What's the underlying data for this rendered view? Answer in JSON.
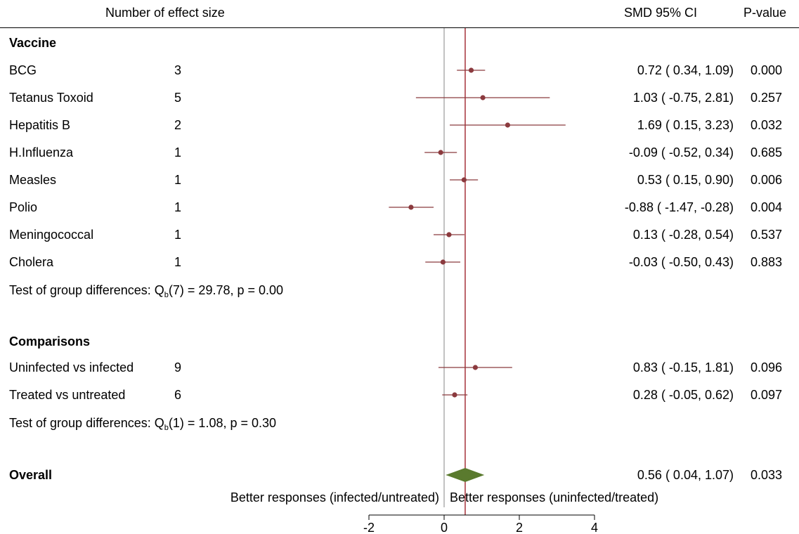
{
  "header": {
    "studies_col": "Number of effect size",
    "ci_col": "SMD 95% CI",
    "p_col": "P-value"
  },
  "groups": [
    {
      "title": "Vaccine",
      "rows": [
        {
          "label": "BCG",
          "n": "3",
          "ci_text": "0.72 ( 0.34,  1.09)",
          "p": "0.000"
        },
        {
          "label": "Tetanus Toxoid",
          "n": "5",
          "ci_text": "1.03 ( -0.75,  2.81)",
          "p": "0.257"
        },
        {
          "label": "Hepatitis B",
          "n": "2",
          "ci_text": "1.69 ( 0.15,  3.23)",
          "p": "0.032"
        },
        {
          "label": "H.Influenza",
          "n": "1",
          "ci_text": "-0.09 ( -0.52,  0.34)",
          "p": "0.685"
        },
        {
          "label": "Measles",
          "n": "1",
          "ci_text": "0.53 ( 0.15,  0.90)",
          "p": "0.006"
        },
        {
          "label": "Polio",
          "n": "1",
          "ci_text": "-0.88 ( -1.47, -0.28)",
          "p": "0.004"
        },
        {
          "label": "Meningococcal",
          "n": "1",
          "ci_text": "0.13 ( -0.28,  0.54)",
          "p": "0.537"
        },
        {
          "label": "Cholera",
          "n": "1",
          "ci_text": "-0.03 ( -0.50,  0.43)",
          "p": "0.883"
        }
      ],
      "test": {
        "prefix": "Test of group differences: Q",
        "sub": "b",
        "suffix": "(7) = 29.78, p = 0.00"
      }
    },
    {
      "title": "Comparisons",
      "rows": [
        {
          "label": "Uninfected vs infected",
          "n": "9",
          "ci_text": "0.83 ( -0.15,  1.81)",
          "p": "0.096"
        },
        {
          "label": "Treated vs untreated",
          "n": "6",
          "ci_text": "0.28 ( -0.05,  0.62)",
          "p": "0.097"
        }
      ],
      "test": {
        "prefix": "Test of group differences: Q",
        "sub": "b",
        "suffix": "(1) = 1.08, p = 0.30"
      }
    }
  ],
  "overall": {
    "label": "Overall",
    "ci_text": "0.56 ( 0.04,  1.07)",
    "p": "0.033"
  },
  "direction_labels": {
    "left": "Better responses (infected/untreated)",
    "right": "Better responses (uninfected/treated)"
  },
  "chart_data": {
    "type": "forest",
    "xlim": [
      -2,
      4
    ],
    "xticks": [
      -2,
      0,
      2,
      4
    ],
    "xtick_labels": [
      "-2",
      "0",
      "2",
      "4"
    ],
    "null_line": 0,
    "overall_line": 0.56,
    "colors": {
      "point": "#8b3a3e",
      "line": "#8b3a3e",
      "diamond": "#5a7a2e",
      "null": "#999999",
      "overall": "#a0242c"
    },
    "series": [
      {
        "name": "BCG",
        "estimate": 0.72,
        "lower": 0.34,
        "upper": 1.09
      },
      {
        "name": "Tetanus Toxoid",
        "estimate": 1.03,
        "lower": -0.75,
        "upper": 2.81
      },
      {
        "name": "Hepatitis B",
        "estimate": 1.69,
        "lower": 0.15,
        "upper": 3.23
      },
      {
        "name": "H.Influenza",
        "estimate": -0.09,
        "lower": -0.52,
        "upper": 0.34
      },
      {
        "name": "Measles",
        "estimate": 0.53,
        "lower": 0.15,
        "upper": 0.9
      },
      {
        "name": "Polio",
        "estimate": -0.88,
        "lower": -1.47,
        "upper": -0.28
      },
      {
        "name": "Meningococcal",
        "estimate": 0.13,
        "lower": -0.28,
        "upper": 0.54
      },
      {
        "name": "Cholera",
        "estimate": -0.03,
        "lower": -0.5,
        "upper": 0.43
      },
      {
        "name": "Uninfected vs infected",
        "estimate": 0.83,
        "lower": -0.15,
        "upper": 1.81
      },
      {
        "name": "Treated vs untreated",
        "estimate": 0.28,
        "lower": -0.05,
        "upper": 0.62
      }
    ],
    "overall": {
      "name": "Overall",
      "estimate": 0.56,
      "lower": 0.04,
      "upper": 1.07
    }
  }
}
